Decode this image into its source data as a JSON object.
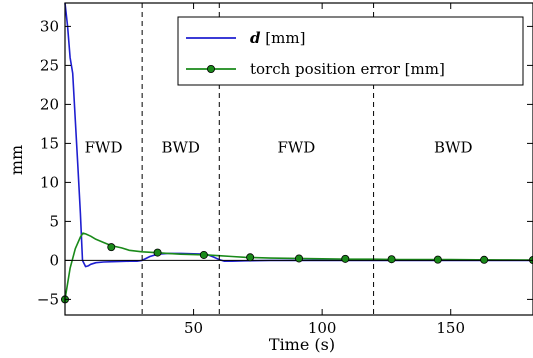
{
  "chart_data": {
    "type": "line",
    "xlabel": "Time (s)",
    "ylabel": "mm",
    "xlim": [
      0,
      182
    ],
    "ylim": [
      -7,
      33
    ],
    "x_ticks": [
      50,
      100,
      150
    ],
    "x_tick_labels": [
      "50",
      "100",
      "150"
    ],
    "y_ticks": [
      -5,
      0,
      5,
      10,
      15,
      20,
      25,
      30
    ],
    "y_tick_labels": [
      "−5",
      "0",
      "5",
      "10",
      "15",
      "20",
      "25",
      "30"
    ],
    "grid": false,
    "legend_position": "top-right",
    "phase_boundaries": [
      30,
      60,
      120
    ],
    "phases": [
      {
        "label": "FWD",
        "start": 0,
        "end": 30
      },
      {
        "label": "BWD",
        "start": 30,
        "end": 60
      },
      {
        "label": "FWD",
        "start": 60,
        "end": 120
      },
      {
        "label": "BWD",
        "start": 120,
        "end": 182
      }
    ],
    "series": [
      {
        "name": "d",
        "name_suffix": " [mm]",
        "color": "#1f1fd0",
        "marker": "none",
        "x": [
          0,
          1,
          2,
          2.5,
          3,
          4,
          5,
          6,
          6.8,
          8,
          9,
          10,
          12,
          15,
          20,
          25,
          28,
          30,
          33,
          36,
          40,
          45,
          50,
          55,
          58,
          60,
          62,
          65,
          70,
          80,
          90,
          100,
          120,
          140,
          160,
          182
        ],
        "y": [
          33,
          30,
          26,
          25,
          24,
          18,
          12,
          6,
          0,
          -0.8,
          -0.7,
          -0.5,
          -0.3,
          -0.2,
          -0.15,
          -0.1,
          -0.1,
          0.0,
          0.5,
          0.8,
          0.9,
          0.9,
          0.85,
          0.8,
          0.4,
          0.1,
          -0.1,
          -0.1,
          -0.05,
          0.0,
          0.0,
          0.0,
          0.0,
          0.0,
          0.0,
          0.0
        ]
      },
      {
        "name": "torch position error [mm]",
        "color": "#1a8a1a",
        "marker": "circle",
        "x": [
          0,
          2,
          4,
          6,
          7,
          8,
          10,
          12,
          15,
          18,
          22,
          25,
          30,
          35,
          40,
          45,
          50,
          55,
          60,
          65,
          70,
          75,
          80,
          90,
          100,
          110,
          120,
          130,
          140,
          150,
          160,
          170,
          182
        ],
        "y": [
          -5,
          -1,
          1.5,
          3,
          3.5,
          3.4,
          3.1,
          2.7,
          2.3,
          1.9,
          1.6,
          1.3,
          1.1,
          1.0,
          0.9,
          0.8,
          0.75,
          0.7,
          0.6,
          0.5,
          0.4,
          0.35,
          0.3,
          0.25,
          0.2,
          0.15,
          0.15,
          0.1,
          0.1,
          0.1,
          0.08,
          0.06,
          0.05
        ],
        "marker_x": [
          0,
          18,
          36,
          54,
          72,
          91,
          109,
          127,
          145,
          163,
          182
        ],
        "marker_y": [
          -5,
          1.7,
          1.0,
          0.7,
          0.4,
          0.25,
          0.2,
          0.15,
          0.1,
          0.08,
          0.05
        ]
      }
    ],
    "phase_label_y": 14.5
  }
}
